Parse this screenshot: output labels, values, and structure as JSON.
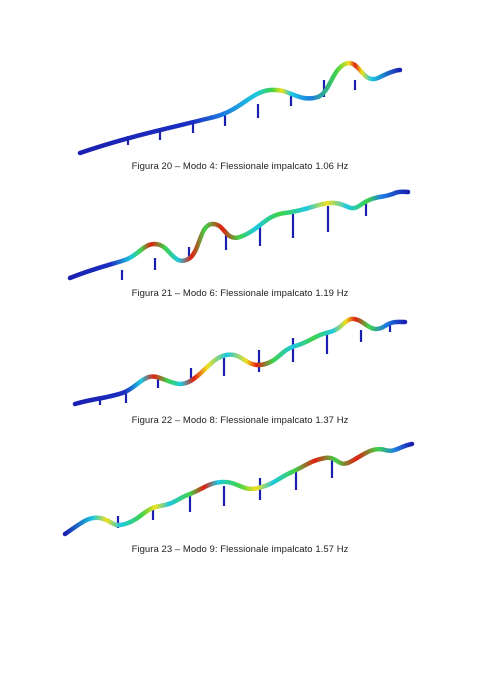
{
  "figures": [
    {
      "caption": "Figura 20 – Modo 4: Flessionale impalcato 1.06 Hz",
      "mode": "mode-4"
    },
    {
      "caption": "Figura 21 – Modo 6: Flessionale impalcato 1.19 Hz",
      "mode": "mode-6"
    },
    {
      "caption": "Figura 22 – Modo 8: Flessionale impalcato 1.37 Hz",
      "mode": "mode-8"
    },
    {
      "caption": "Figura 23 – Modo 9: Flessionale impalcato 1.57 Hz",
      "mode": "mode-9"
    }
  ],
  "colors": {
    "deck_blue": "#1a1fb0",
    "cyan": "#1ec8e0",
    "green": "#3fd24a",
    "yellow": "#f0e020",
    "red": "#e02010"
  }
}
